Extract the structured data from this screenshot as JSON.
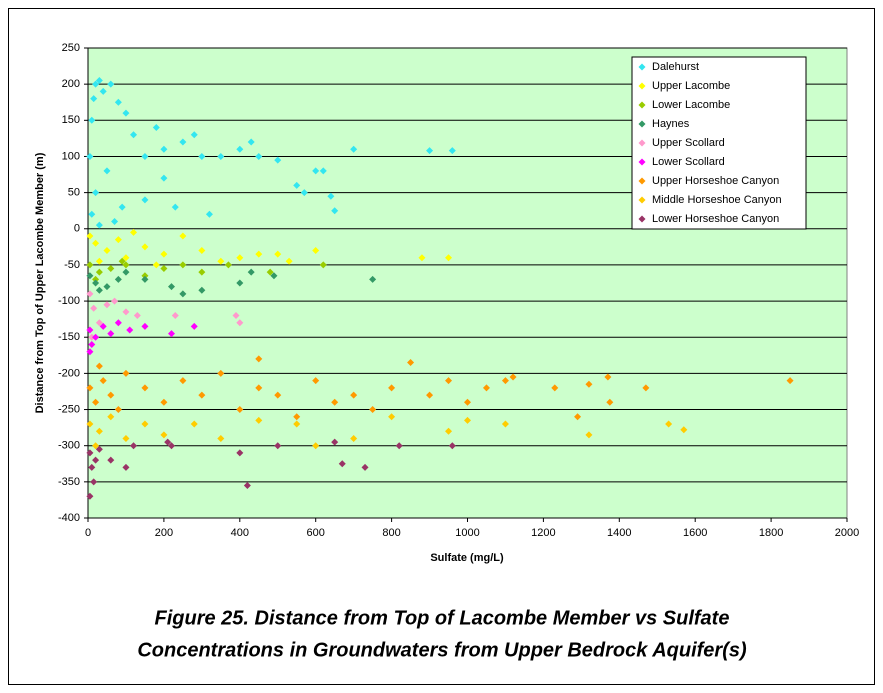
{
  "chart_data": {
    "type": "scatter",
    "x_label": "Sulfate (mg/L)",
    "y_label": "Distance from Top of Upper Lacombe Member (m)",
    "caption": [
      "Figure 25. Distance from Top of Lacombe Member vs Sulfate",
      "Concentrations in Groundwaters from Upper Bedrock Aquifer(s)"
    ],
    "xlim": [
      0,
      2000
    ],
    "xticks": [
      0,
      200,
      400,
      600,
      800,
      1000,
      1200,
      1400,
      1600,
      1800,
      2000
    ],
    "ylim": [
      -400,
      250
    ],
    "yticks": [
      -400,
      -350,
      -300,
      -250,
      -200,
      -150,
      -100,
      -50,
      0,
      50,
      100,
      150,
      200,
      250
    ],
    "grid": true,
    "legend": "top-right",
    "background": "#ccffcc",
    "series": [
      {
        "name": "Dalehurst",
        "color": "#33e6f0",
        "x": [
          5,
          10,
          15,
          20,
          30,
          40,
          60,
          80,
          100,
          120,
          150,
          180,
          200,
          250,
          280,
          300,
          350,
          400,
          430,
          450,
          500,
          550,
          570,
          600,
          620,
          640,
          650,
          700,
          900,
          960,
          10,
          20,
          50,
          70,
          90,
          30,
          150,
          230,
          320,
          200
        ],
        "values": [
          100,
          150,
          180,
          200,
          205,
          190,
          200,
          175,
          160,
          130,
          100,
          140,
          110,
          120,
          130,
          100,
          100,
          110,
          120,
          100,
          95,
          60,
          50,
          80,
          80,
          45,
          25,
          110,
          108,
          108,
          20,
          50,
          80,
          10,
          30,
          5,
          40,
          30,
          20,
          70
        ]
      },
      {
        "name": "Upper Lacombe",
        "color": "#ffff00",
        "x": [
          5,
          20,
          50,
          80,
          100,
          150,
          200,
          250,
          300,
          350,
          400,
          450,
          500,
          530,
          600,
          880,
          950,
          30,
          120,
          180
        ],
        "values": [
          -10,
          -20,
          -30,
          -15,
          -40,
          -25,
          -35,
          -10,
          -30,
          -45,
          -40,
          -35,
          -35,
          -45,
          -30,
          -40,
          -40,
          -45,
          -5,
          -50
        ]
      },
      {
        "name": "Lower Lacombe",
        "color": "#99cc00",
        "x": [
          5,
          30,
          60,
          100,
          150,
          200,
          250,
          300,
          370,
          480,
          620,
          20,
          90
        ],
        "values": [
          -50,
          -60,
          -55,
          -50,
          -65,
          -55,
          -50,
          -60,
          -50,
          -60,
          -50,
          -70,
          -45
        ]
      },
      {
        "name": "Haynes",
        "color": "#339966",
        "x": [
          5,
          20,
          50,
          80,
          150,
          220,
          250,
          300,
          400,
          430,
          490,
          750,
          30,
          100
        ],
        "values": [
          -65,
          -75,
          -80,
          -70,
          -70,
          -80,
          -90,
          -85,
          -75,
          -60,
          -65,
          -70,
          -85,
          -60
        ]
      },
      {
        "name": "Upper Scollard",
        "color": "#ff99cc",
        "x": [
          5,
          15,
          30,
          50,
          70,
          100,
          130,
          230,
          390,
          400,
          10
        ],
        "values": [
          -90,
          -110,
          -130,
          -105,
          -100,
          -115,
          -120,
          -120,
          -120,
          -130,
          -150
        ]
      },
      {
        "name": "Lower Scollard",
        "color": "#ff00ff",
        "x": [
          5,
          10,
          20,
          40,
          60,
          80,
          110,
          150,
          220,
          280,
          5
        ],
        "values": [
          -140,
          -160,
          -150,
          -135,
          -145,
          -130,
          -140,
          -135,
          -145,
          -135,
          -170
        ]
      },
      {
        "name": "Upper Horseshoe Canyon",
        "color": "#ff9900",
        "x": [
          5,
          20,
          40,
          60,
          80,
          100,
          150,
          200,
          250,
          300,
          350,
          400,
          450,
          500,
          550,
          600,
          650,
          700,
          750,
          800,
          850,
          900,
          950,
          1000,
          1050,
          1100,
          1120,
          1230,
          1290,
          1320,
          1370,
          1375,
          1470,
          1850,
          450,
          30
        ],
        "values": [
          -220,
          -240,
          -210,
          -230,
          -250,
          -200,
          -220,
          -240,
          -210,
          -230,
          -200,
          -250,
          -220,
          -230,
          -260,
          -210,
          -240,
          -230,
          -250,
          -220,
          -185,
          -230,
          -210,
          -240,
          -220,
          -210,
          -205,
          -220,
          -260,
          -215,
          -205,
          -240,
          -220,
          -210,
          -180,
          -190
        ]
      },
      {
        "name": "Middle Horseshoe Canyon",
        "color": "#ffcc00",
        "x": [
          5,
          30,
          60,
          100,
          150,
          200,
          280,
          350,
          450,
          550,
          600,
          800,
          950,
          1100,
          1320,
          1530,
          1570,
          1000,
          700,
          20
        ],
        "values": [
          -270,
          -280,
          -260,
          -290,
          -270,
          -285,
          -270,
          -290,
          -265,
          -270,
          -300,
          -260,
          -280,
          -270,
          -285,
          -270,
          -278,
          -265,
          -290,
          -300
        ]
      },
      {
        "name": "Lower Horseshoe Canyon",
        "color": "#993366",
        "x": [
          5,
          5,
          10,
          15,
          20,
          30,
          60,
          100,
          120,
          210,
          220,
          400,
          420,
          500,
          650,
          670,
          730,
          820,
          960
        ],
        "values": [
          -310,
          -370,
          -330,
          -350,
          -320,
          -305,
          -320,
          -330,
          -300,
          -295,
          -300,
          -310,
          -355,
          -300,
          -295,
          -325,
          -330,
          -300,
          -300
        ]
      }
    ]
  }
}
